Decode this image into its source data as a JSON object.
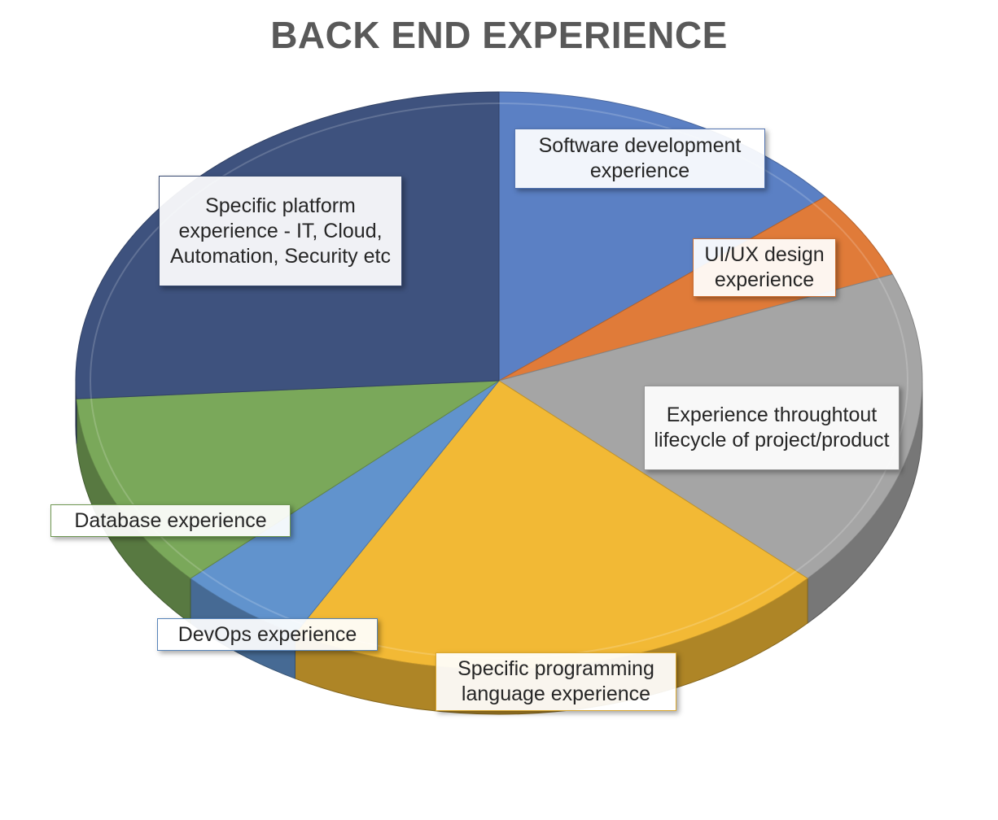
{
  "chart_data": {
    "type": "pie",
    "title": "BACK END EXPERIENCE",
    "three_d": true,
    "legend": "none",
    "slices": [
      {
        "label": "Software development experience",
        "value": 14,
        "color": "#5b80c4"
      },
      {
        "label": "UI/UX design experience",
        "value": 5,
        "color": "#e07b39"
      },
      {
        "label": "Experience throughtout lifecycle of project/product",
        "value": 18,
        "color": "#a5a5a5"
      },
      {
        "label": "Specific programming language experience",
        "value": 21,
        "color": "#f2b935"
      },
      {
        "label": "DevOps experience",
        "value": 5,
        "color": "#6193cd"
      },
      {
        "label": "Database experience",
        "value": 11,
        "color": "#7aa85a"
      },
      {
        "label": "Specific platform experience - IT, Cloud, Automation,  Security etc",
        "value": 26,
        "color": "#3e527e"
      }
    ]
  }
}
